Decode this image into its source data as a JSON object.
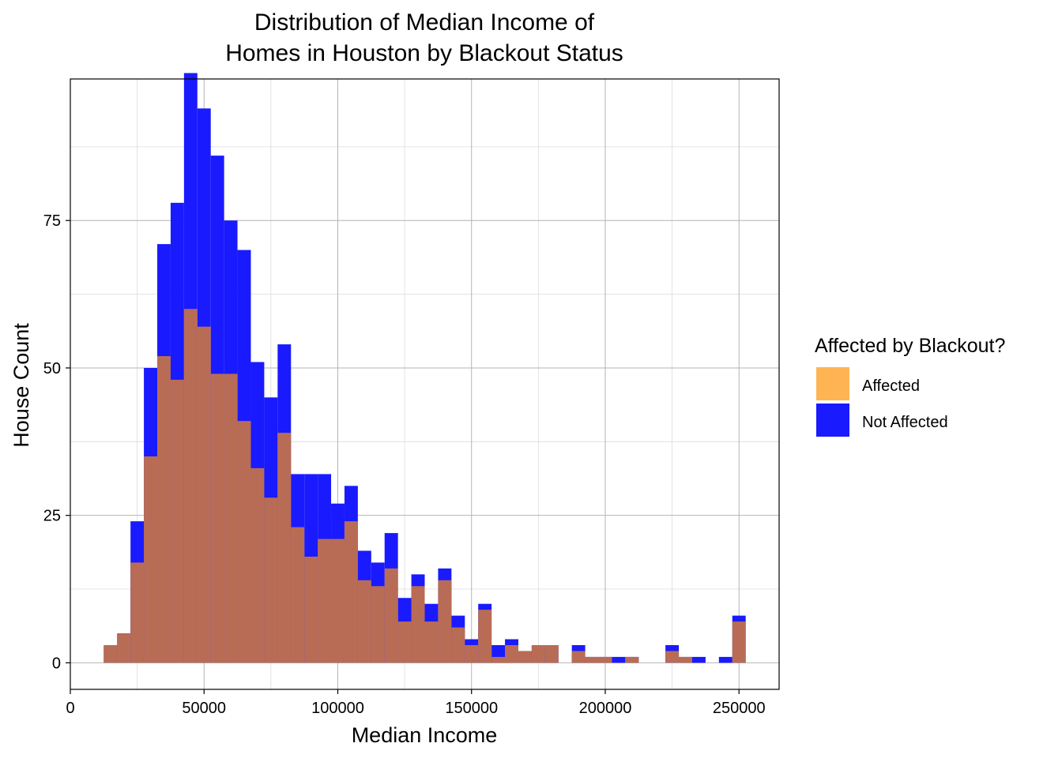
{
  "chart_data": {
    "type": "bar",
    "title_lines": [
      "Distribution of Median Income of",
      "Homes in Houston by Blackout Status"
    ],
    "xlabel": "Median Income",
    "ylabel": "House Count",
    "xlim": [
      0,
      265000
    ],
    "ylim": [
      -4.5,
      99
    ],
    "x_ticks": [
      0,
      50000,
      100000,
      150000,
      200000,
      250000
    ],
    "x_tick_labels": [
      "0",
      "50000",
      "100000",
      "150000",
      "200000",
      "250000"
    ],
    "y_ticks": [
      0,
      25,
      50,
      75
    ],
    "y_tick_labels": [
      "0",
      "25",
      "50",
      "75"
    ],
    "grid": true,
    "bin_width": 5000,
    "bin_starts": [
      12500,
      17500,
      22500,
      27500,
      32500,
      37500,
      42500,
      47500,
      52500,
      57500,
      62500,
      67500,
      72500,
      77500,
      82500,
      87500,
      92500,
      97500,
      102500,
      107500,
      112500,
      117500,
      122500,
      127500,
      132500,
      137500,
      142500,
      147500,
      152500,
      157500,
      162500,
      167500,
      172500,
      177500,
      182500,
      187500,
      192500,
      197500,
      202500,
      207500,
      212500,
      217500,
      222500,
      227500,
      232500,
      237500,
      242500,
      247500
    ],
    "legend": {
      "title": "Affected by Blackout?",
      "position": "right"
    },
    "series": [
      {
        "name": "Not Affected",
        "color": "#1a1aff",
        "values": [
          0,
          0,
          7,
          15,
          19,
          30,
          40,
          37,
          37,
          26,
          29,
          18,
          17,
          15,
          9,
          14,
          11,
          6,
          6,
          5,
          4,
          6,
          4,
          2,
          3,
          2,
          2,
          1,
          1,
          2,
          1,
          0,
          0,
          0,
          0,
          1,
          0,
          0,
          1,
          0,
          0,
          0,
          1,
          0,
          1,
          0,
          1,
          1
        ]
      },
      {
        "name": "Affected",
        "color": "#ffb454",
        "values": [
          3,
          5,
          17,
          35,
          52,
          48,
          60,
          57,
          49,
          49,
          41,
          33,
          28,
          39,
          23,
          18,
          21,
          21,
          24,
          14,
          13,
          16,
          7,
          13,
          7,
          14,
          6,
          3,
          9,
          1,
          3,
          2,
          3,
          3,
          0,
          2,
          1,
          1,
          0,
          1,
          0,
          0,
          2,
          1,
          0,
          0,
          0,
          7
        ]
      }
    ]
  }
}
